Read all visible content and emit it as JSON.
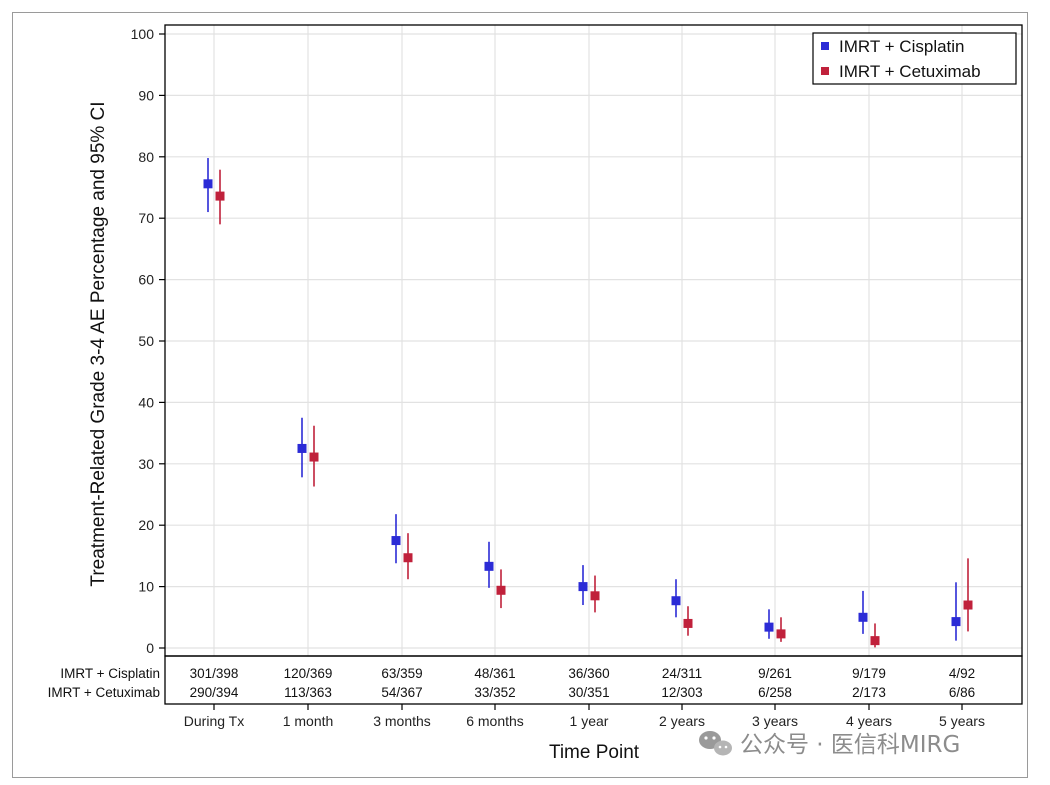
{
  "chart_data": {
    "type": "scatter",
    "ylabel": "Treatment-Related Grade 3-4 AE Percentage and 95% CI",
    "xlabel": "Time Point",
    "ylim": [
      0,
      100
    ],
    "yticks": [
      0,
      10,
      20,
      30,
      40,
      50,
      60,
      70,
      80,
      90,
      100
    ],
    "grid": true,
    "legend_position": "top-right",
    "categories": [
      "During Tx",
      "1 month",
      "3 months",
      "6 months",
      "1 year",
      "2 years",
      "3 years",
      "4 years",
      "5 years"
    ],
    "series": [
      {
        "name": "IMRT + Cisplatin",
        "color": "#2b2bd6",
        "values": [
          75.6,
          32.5,
          17.5,
          13.3,
          10.0,
          7.7,
          3.4,
          5.0,
          4.3
        ],
        "ci_low": [
          71.0,
          27.8,
          13.8,
          9.8,
          7.0,
          5.0,
          1.5,
          2.3,
          1.2
        ],
        "ci_high": [
          79.8,
          37.5,
          21.8,
          17.3,
          13.5,
          11.2,
          6.3,
          9.3,
          10.7
        ],
        "counts": [
          "301/398",
          "120/369",
          "63/359",
          "48/361",
          "36/360",
          "24/311",
          "9/261",
          "9/179",
          "4/92"
        ]
      },
      {
        "name": "IMRT + Cetuximab",
        "color": "#c0213b",
        "values": [
          73.6,
          31.1,
          14.7,
          9.4,
          8.5,
          4.0,
          2.3,
          1.2,
          7.0
        ],
        "ci_low": [
          69.0,
          26.3,
          11.2,
          6.5,
          5.8,
          2.0,
          1.0,
          0.1,
          2.7
        ],
        "ci_high": [
          77.9,
          36.2,
          18.7,
          12.8,
          11.8,
          6.8,
          5.0,
          4.0,
          14.6
        ],
        "counts": [
          "290/394",
          "113/363",
          "54/367",
          "33/352",
          "30/351",
          "12/303",
          "6/258",
          "2/173",
          "6/86"
        ]
      }
    ],
    "count_table_labels": [
      "IMRT + Cisplatin",
      "IMRT + Cetuximab"
    ]
  },
  "watermark": {
    "text": "公众号 · 医信科MIRG",
    "icon": "wechat-icon"
  }
}
